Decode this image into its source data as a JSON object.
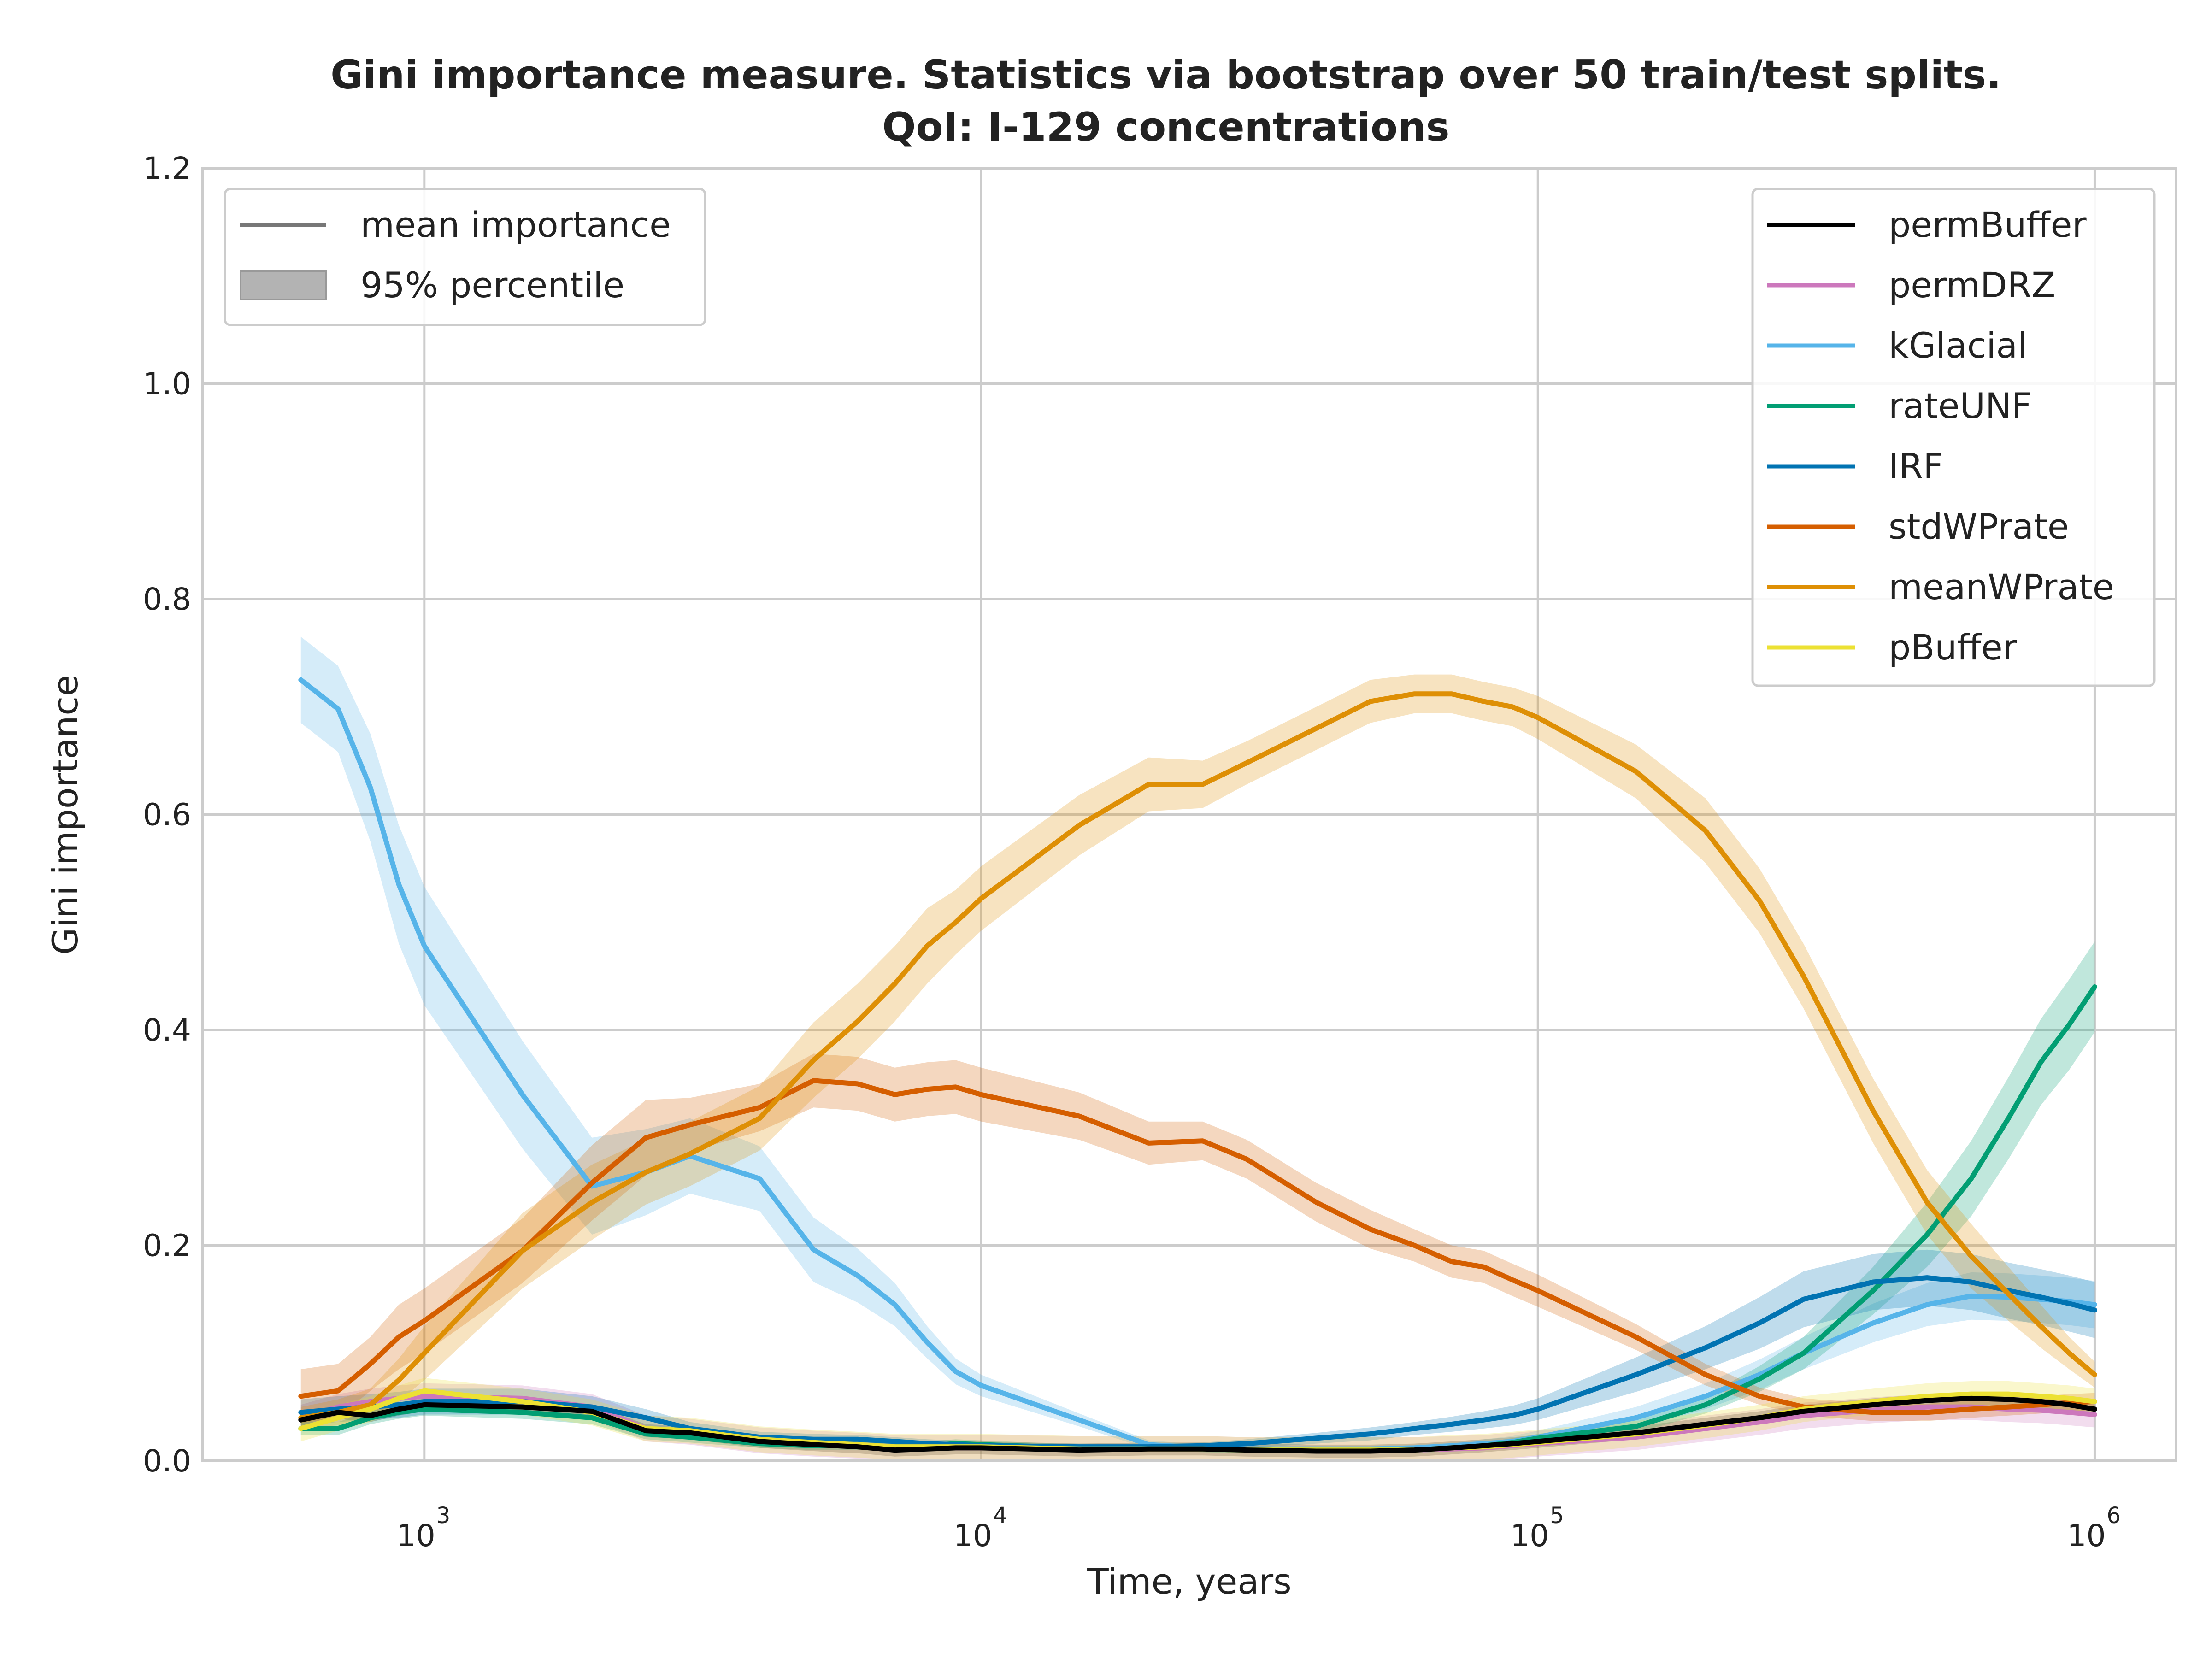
{
  "chart_data": {
    "type": "line",
    "title_line1": "Gini importance measure. Statistics via bootstrap over 50 train/test splits.",
    "title_line2": "QoI: I-129 concentrations",
    "xlabel": "Time, years",
    "ylabel": "Gini importance",
    "xscale": "log",
    "xlim": [
      400,
      1400000
    ],
    "ylim": [
      0.0,
      1.2
    ],
    "grid": true,
    "yticks": [
      {
        "value": 0.0,
        "label": "0.0"
      },
      {
        "value": 0.2,
        "label": "0.2"
      },
      {
        "value": 0.4,
        "label": "0.4"
      },
      {
        "value": 0.6,
        "label": "0.6"
      },
      {
        "value": 0.8,
        "label": "0.8"
      },
      {
        "value": 1.0,
        "label": "1.0"
      },
      {
        "value": 1.2,
        "label": "1.2"
      }
    ],
    "xticks": [
      {
        "value": 1000,
        "base": "10",
        "exp": "3"
      },
      {
        "value": 10000,
        "base": "10",
        "exp": "4"
      },
      {
        "value": 100000,
        "base": "10",
        "exp": "5"
      },
      {
        "value": 1000000,
        "base": "10",
        "exp": "6"
      }
    ],
    "style_legend": {
      "placement": "top-left",
      "items": [
        {
          "label": "mean importance",
          "kind": "line"
        },
        {
          "label": "95% percentile",
          "kind": "band"
        }
      ]
    },
    "series_legend_placement": "top-right",
    "x": [
      600,
      700,
      800,
      900,
      1000,
      1500,
      2000,
      2500,
      3000,
      4000,
      5000,
      6000,
      7000,
      8000,
      9000,
      10000,
      15000,
      20000,
      25000,
      30000,
      40000,
      50000,
      60000,
      70000,
      80000,
      90000,
      100000,
      150000,
      200000,
      250000,
      300000,
      400000,
      500000,
      600000,
      700000,
      800000,
      900000,
      1000000
    ],
    "series": [
      {
        "name": "permBuffer",
        "color": "#000000",
        "band": 0.006,
        "values": [
          0.038,
          0.045,
          0.042,
          0.048,
          0.052,
          0.05,
          0.046,
          0.028,
          0.026,
          0.018,
          0.015,
          0.013,
          0.01,
          0.011,
          0.012,
          0.012,
          0.01,
          0.011,
          0.011,
          0.01,
          0.009,
          0.009,
          0.01,
          0.012,
          0.014,
          0.016,
          0.018,
          0.026,
          0.034,
          0.04,
          0.046,
          0.052,
          0.056,
          0.058,
          0.057,
          0.055,
          0.052,
          0.048
        ]
      },
      {
        "name": "permDRZ",
        "color": "#cc78bc",
        "band": 0.012,
        "values": [
          0.04,
          0.05,
          0.055,
          0.058,
          0.06,
          0.058,
          0.05,
          0.03,
          0.027,
          0.019,
          0.016,
          0.014,
          0.012,
          0.012,
          0.012,
          0.012,
          0.011,
          0.011,
          0.011,
          0.01,
          0.01,
          0.01,
          0.01,
          0.011,
          0.012,
          0.014,
          0.016,
          0.022,
          0.03,
          0.036,
          0.042,
          0.047,
          0.05,
          0.05,
          0.048,
          0.047,
          0.045,
          0.043
        ]
      },
      {
        "name": "kGlacial",
        "color": "#56b4e9",
        "values": [
          0.725,
          0.698,
          0.625,
          0.535,
          0.478,
          0.34,
          0.255,
          0.268,
          0.283,
          0.262,
          0.196,
          0.172,
          0.145,
          0.11,
          0.083,
          0.07,
          0.038,
          0.015,
          0.012,
          0.011,
          0.011,
          0.011,
          0.012,
          0.014,
          0.016,
          0.018,
          0.022,
          0.04,
          0.06,
          0.08,
          0.1,
          0.128,
          0.145,
          0.153,
          0.152,
          0.15,
          0.148,
          0.145
        ],
        "band_width": [
          0.04,
          0.04,
          0.05,
          0.055,
          0.055,
          0.05,
          0.045,
          0.04,
          0.035,
          0.03,
          0.03,
          0.025,
          0.02,
          0.015,
          0.012,
          0.01,
          0.006,
          0.004,
          0.003,
          0.003,
          0.003,
          0.003,
          0.003,
          0.003,
          0.004,
          0.005,
          0.006,
          0.01,
          0.012,
          0.014,
          0.015,
          0.018,
          0.02,
          0.022,
          0.022,
          0.022,
          0.022,
          0.022
        ]
      },
      {
        "name": "rateUNF",
        "color": "#029e73",
        "values": [
          0.03,
          0.03,
          0.04,
          0.045,
          0.048,
          0.045,
          0.04,
          0.025,
          0.022,
          0.016,
          0.014,
          0.014,
          0.013,
          0.014,
          0.016,
          0.015,
          0.012,
          0.012,
          0.011,
          0.01,
          0.01,
          0.01,
          0.01,
          0.012,
          0.014,
          0.017,
          0.021,
          0.032,
          0.052,
          0.076,
          0.1,
          0.158,
          0.21,
          0.262,
          0.318,
          0.37,
          0.405,
          0.44
        ],
        "band_width": [
          0.006,
          0.006,
          0.006,
          0.006,
          0.006,
          0.006,
          0.006,
          0.005,
          0.005,
          0.004,
          0.004,
          0.004,
          0.004,
          0.004,
          0.004,
          0.004,
          0.003,
          0.003,
          0.003,
          0.003,
          0.003,
          0.003,
          0.003,
          0.003,
          0.003,
          0.004,
          0.004,
          0.006,
          0.008,
          0.012,
          0.015,
          0.022,
          0.03,
          0.035,
          0.038,
          0.04,
          0.042,
          0.042
        ]
      },
      {
        "name": "IRF",
        "color": "#0173b2",
        "values": [
          0.045,
          0.048,
          0.05,
          0.052,
          0.055,
          0.055,
          0.05,
          0.04,
          0.03,
          0.022,
          0.02,
          0.02,
          0.018,
          0.016,
          0.015,
          0.014,
          0.013,
          0.013,
          0.014,
          0.016,
          0.021,
          0.025,
          0.03,
          0.034,
          0.038,
          0.042,
          0.048,
          0.08,
          0.105,
          0.128,
          0.15,
          0.166,
          0.17,
          0.166,
          0.158,
          0.152,
          0.146,
          0.14
        ],
        "band_width": [
          0.012,
          0.012,
          0.012,
          0.012,
          0.012,
          0.012,
          0.01,
          0.008,
          0.006,
          0.005,
          0.005,
          0.004,
          0.004,
          0.004,
          0.004,
          0.003,
          0.003,
          0.003,
          0.003,
          0.004,
          0.005,
          0.006,
          0.006,
          0.007,
          0.008,
          0.009,
          0.01,
          0.016,
          0.02,
          0.024,
          0.026,
          0.026,
          0.026,
          0.026,
          0.026,
          0.026,
          0.026,
          0.026
        ]
      },
      {
        "name": "stdWPrate",
        "color": "#d55e00",
        "values": [
          0.06,
          0.065,
          0.09,
          0.115,
          0.13,
          0.195,
          0.258,
          0.3,
          0.312,
          0.328,
          0.353,
          0.35,
          0.34,
          0.345,
          0.347,
          0.34,
          0.32,
          0.295,
          0.297,
          0.28,
          0.24,
          0.215,
          0.2,
          0.185,
          0.18,
          0.168,
          0.158,
          0.115,
          0.08,
          0.06,
          0.05,
          0.045,
          0.045,
          0.048,
          0.05,
          0.052,
          0.054,
          0.055
        ],
        "band_width": [
          0.025,
          0.025,
          0.025,
          0.03,
          0.03,
          0.03,
          0.035,
          0.035,
          0.025,
          0.022,
          0.025,
          0.025,
          0.025,
          0.025,
          0.025,
          0.025,
          0.022,
          0.02,
          0.018,
          0.018,
          0.018,
          0.018,
          0.015,
          0.015,
          0.015,
          0.015,
          0.015,
          0.012,
          0.01,
          0.008,
          0.008,
          0.008,
          0.008,
          0.008,
          0.008,
          0.008,
          0.008,
          0.008
        ]
      },
      {
        "name": "meanWPrate",
        "color": "#de8f05",
        "values": [
          0.04,
          0.045,
          0.052,
          0.075,
          0.1,
          0.195,
          0.24,
          0.268,
          0.285,
          0.318,
          0.372,
          0.408,
          0.443,
          0.478,
          0.5,
          0.522,
          0.59,
          0.628,
          0.628,
          0.648,
          0.68,
          0.705,
          0.712,
          0.712,
          0.705,
          0.7,
          0.69,
          0.64,
          0.585,
          0.52,
          0.45,
          0.325,
          0.24,
          0.19,
          0.155,
          0.125,
          0.1,
          0.08
        ],
        "band_width": [
          0.01,
          0.012,
          0.015,
          0.02,
          0.025,
          0.035,
          0.035,
          0.03,
          0.03,
          0.03,
          0.035,
          0.035,
          0.035,
          0.035,
          0.03,
          0.03,
          0.028,
          0.025,
          0.022,
          0.02,
          0.02,
          0.02,
          0.018,
          0.018,
          0.018,
          0.018,
          0.02,
          0.025,
          0.03,
          0.03,
          0.03,
          0.03,
          0.03,
          0.03,
          0.025,
          0.02,
          0.015,
          0.012
        ]
      },
      {
        "name": "pBuffer",
        "color": "#ece133",
        "band": 0.012,
        "values": [
          0.03,
          0.04,
          0.048,
          0.058,
          0.065,
          0.055,
          0.045,
          0.03,
          0.028,
          0.02,
          0.017,
          0.015,
          0.013,
          0.013,
          0.013,
          0.013,
          0.011,
          0.011,
          0.011,
          0.01,
          0.01,
          0.01,
          0.01,
          0.012,
          0.013,
          0.015,
          0.017,
          0.025,
          0.033,
          0.04,
          0.048,
          0.055,
          0.06,
          0.062,
          0.062,
          0.06,
          0.058,
          0.055
        ]
      }
    ]
  }
}
